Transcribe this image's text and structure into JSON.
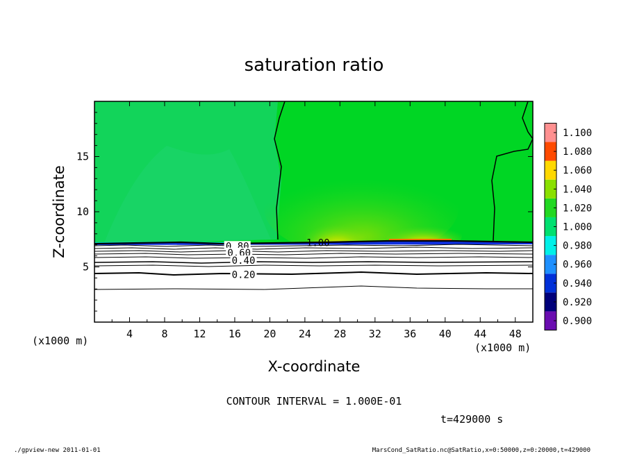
{
  "chart_data": {
    "type": "heatmap",
    "title": "saturation ratio",
    "xlabel": "X-coordinate",
    "ylabel": "Z-coordinate",
    "x_unit_label": "(x1000 m)",
    "y_unit_label": "(x1000 m)",
    "xlim": [
      0,
      50
    ],
    "ylim": [
      0,
      20
    ],
    "x_ticks": [
      4,
      8,
      12,
      16,
      20,
      24,
      28,
      32,
      36,
      40,
      44,
      48
    ],
    "y_ticks": [
      5,
      10,
      15
    ],
    "colorbar": {
      "levels": [
        "0.900",
        "0.920",
        "0.940",
        "0.960",
        "0.980",
        "1.000",
        "1.020",
        "1.040",
        "1.060",
        "1.080",
        "1.100"
      ],
      "colors": [
        "#6a0db0",
        "#00007a",
        "#0030d8",
        "#1e90ff",
        "#00f0e8",
        "#00e070",
        "#22d822",
        "#8ae000",
        "#ffd800",
        "#ff4a00",
        "#ff9090"
      ]
    },
    "contour_labels": [
      {
        "text": "1.00",
        "x": 25.5,
        "z": 7.2
      },
      {
        "text": "0.80",
        "x": 16.3,
        "z": 6.9
      },
      {
        "text": "0.60",
        "x": 16.5,
        "z": 6.3
      },
      {
        "text": "0.40",
        "x": 17.0,
        "z": 5.6
      },
      {
        "text": "0.20",
        "x": 17.0,
        "z": 4.3
      }
    ],
    "contour_interval_text": "CONTOUR INTERVAL = 1.000E-01",
    "time_text": "t=429000 s",
    "colors": {
      "main_field": "#00d624",
      "left_field": "#12d45a",
      "below_boundary": "#ffffff"
    }
  },
  "footer": {
    "left": "./gpview-new  2011-01-01",
    "right": "MarsCond_SatRatio.nc@SatRatio,x=0:50000,z=0:20000,t=429000"
  }
}
